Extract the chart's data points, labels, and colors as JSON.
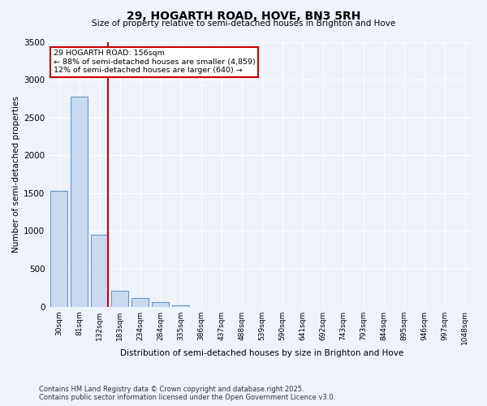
{
  "title_line1": "29, HOGARTH ROAD, HOVE, BN3 5RH",
  "title_line2": "Size of property relative to semi-detached houses in Brighton and Hove",
  "xlabel": "Distribution of semi-detached houses by size in Brighton and Hove",
  "ylabel": "Number of semi-detached properties",
  "categories": [
    "30sqm",
    "81sqm",
    "132sqm",
    "183sqm",
    "234sqm",
    "284sqm",
    "335sqm",
    "386sqm",
    "437sqm",
    "488sqm",
    "539sqm",
    "590sqm",
    "641sqm",
    "692sqm",
    "743sqm",
    "793sqm",
    "844sqm",
    "895sqm",
    "946sqm",
    "997sqm",
    "1048sqm"
  ],
  "values": [
    1530,
    2780,
    950,
    215,
    110,
    55,
    20,
    0,
    0,
    0,
    0,
    0,
    0,
    0,
    0,
    0,
    0,
    0,
    0,
    0,
    0
  ],
  "bar_color": "#c9d9f0",
  "bar_edge_color": "#5b8fc9",
  "vline_color": "#cc0000",
  "annotation_title": "29 HOGARTH ROAD: 156sqm",
  "annotation_line1": "← 88% of semi-detached houses are smaller (4,859)",
  "annotation_line2": "12% of semi-detached houses are larger (640) →",
  "annotation_box_color": "#cc0000",
  "ylim": [
    0,
    3500
  ],
  "yticks": [
    0,
    500,
    1000,
    1500,
    2000,
    2500,
    3000,
    3500
  ],
  "footnote1": "Contains HM Land Registry data © Crown copyright and database right 2025.",
  "footnote2": "Contains public sector information licensed under the Open Government Licence v3.0.",
  "bg_color": "#eef2fb",
  "plot_bg_color": "#eef2fb"
}
